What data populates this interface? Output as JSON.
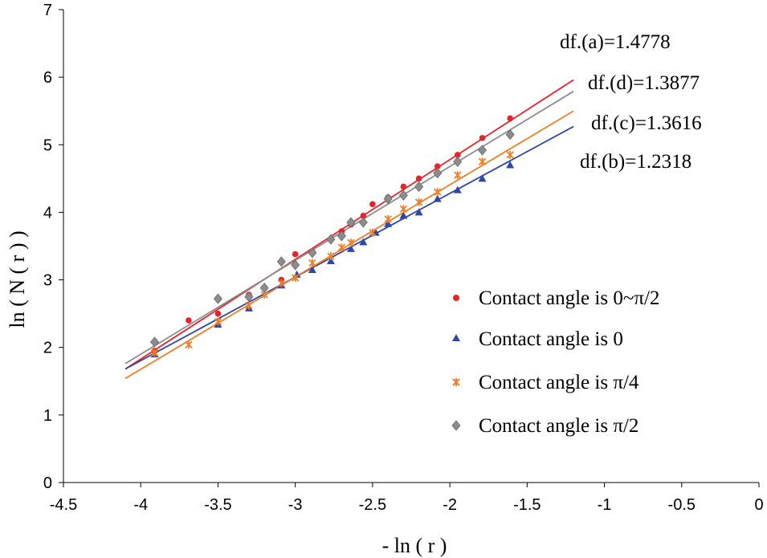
{
  "chart_data": {
    "type": "scatter",
    "title": "",
    "xlabel": "- ln ( r )",
    "ylabel": "ln ( N ( r ) )",
    "xlim": [
      -4.5,
      0
    ],
    "ylim": [
      0,
      7
    ],
    "x_ticks": [
      -4.5,
      -4,
      -3.5,
      -3,
      -2.5,
      -2,
      -1.5,
      -1,
      -0.5,
      0
    ],
    "x_tick_labels": [
      "-4.5",
      "-4",
      "-3.5",
      "-3",
      "-2.5",
      "-2",
      "-1.5",
      "-1",
      "-0.5",
      "0"
    ],
    "y_ticks": [
      0,
      1,
      2,
      3,
      4,
      5,
      6,
      7
    ],
    "y_tick_labels": [
      "0",
      "1",
      "2",
      "3",
      "4",
      "5",
      "6",
      "7"
    ],
    "legend_position": "bottom-right",
    "annotations": [
      {
        "id": "a",
        "text": "df.(a)=1.4778"
      },
      {
        "id": "d",
        "text": "df.(d)=1.3877"
      },
      {
        "id": "c",
        "text": "df.(c)=1.3616"
      },
      {
        "id": "b",
        "text": "df.(b)=1.2318"
      }
    ],
    "series": [
      {
        "name": "Contact angle is 0~π/2",
        "marker": "circle",
        "color": "#e8242a",
        "points": [
          [
            -3.91,
            1.95
          ],
          [
            -3.69,
            2.4
          ],
          [
            -3.5,
            2.5
          ],
          [
            -3.3,
            2.78
          ],
          [
            -3.09,
            3.0
          ],
          [
            -3.0,
            3.38
          ],
          [
            -2.89,
            3.42
          ],
          [
            -2.77,
            3.6
          ],
          [
            -2.7,
            3.72
          ],
          [
            -2.64,
            3.82
          ],
          [
            -2.56,
            3.95
          ],
          [
            -2.5,
            4.12
          ],
          [
            -2.4,
            4.22
          ],
          [
            -2.3,
            4.38
          ],
          [
            -2.2,
            4.5
          ],
          [
            -2.08,
            4.68
          ],
          [
            -1.95,
            4.85
          ],
          [
            -1.79,
            5.1
          ],
          [
            -1.61,
            5.39
          ]
        ],
        "fit": {
          "x": [
            -4.1,
            -1.2
          ],
          "y": [
            1.68,
            5.96
          ]
        }
      },
      {
        "name": "Contact angle is 0",
        "marker": "triangle",
        "color": "#2f48a8",
        "points": [
          [
            -3.91,
            1.9
          ],
          [
            -3.5,
            2.34
          ],
          [
            -3.3,
            2.58
          ],
          [
            -3.09,
            2.92
          ],
          [
            -2.99,
            3.08
          ],
          [
            -2.89,
            3.15
          ],
          [
            -2.77,
            3.28
          ],
          [
            -2.64,
            3.46
          ],
          [
            -2.56,
            3.56
          ],
          [
            -2.48,
            3.7
          ],
          [
            -2.4,
            3.83
          ],
          [
            -2.3,
            3.95
          ],
          [
            -2.2,
            4.0
          ],
          [
            -2.08,
            4.2
          ],
          [
            -1.95,
            4.33
          ],
          [
            -1.79,
            4.5
          ],
          [
            -1.61,
            4.7
          ]
        ],
        "fit": {
          "x": [
            -4.1,
            -1.2
          ],
          "y": [
            1.68,
            5.27
          ]
        }
      },
      {
        "name": "Contact angle is π/4",
        "marker": "x",
        "color": "#f07f2a",
        "points": [
          [
            -3.91,
            1.92
          ],
          [
            -3.69,
            2.04
          ],
          [
            -3.5,
            2.38
          ],
          [
            -3.3,
            2.62
          ],
          [
            -3.2,
            2.78
          ],
          [
            -3.09,
            2.95
          ],
          [
            -3.0,
            3.03
          ],
          [
            -2.89,
            3.25
          ],
          [
            -2.77,
            3.35
          ],
          [
            -2.7,
            3.48
          ],
          [
            -2.64,
            3.55
          ],
          [
            -2.5,
            3.7
          ],
          [
            -2.4,
            3.9
          ],
          [
            -2.3,
            4.05
          ],
          [
            -2.2,
            4.15
          ],
          [
            -2.08,
            4.3
          ],
          [
            -1.95,
            4.55
          ],
          [
            -1.79,
            4.75
          ],
          [
            -1.61,
            4.85
          ]
        ],
        "fit": {
          "x": [
            -4.1,
            -1.2
          ],
          "y": [
            1.54,
            5.5
          ]
        }
      },
      {
        "name": "Contact angle is π/2",
        "marker": "diamond",
        "color": "#8c8c8c",
        "points": [
          [
            -3.91,
            2.08
          ],
          [
            -3.5,
            2.72
          ],
          [
            -3.3,
            2.75
          ],
          [
            -3.2,
            2.88
          ],
          [
            -3.09,
            3.27
          ],
          [
            -3.0,
            3.22
          ],
          [
            -2.89,
            3.4
          ],
          [
            -2.77,
            3.6
          ],
          [
            -2.7,
            3.65
          ],
          [
            -2.64,
            3.85
          ],
          [
            -2.56,
            3.85
          ],
          [
            -2.4,
            4.2
          ],
          [
            -2.3,
            4.25
          ],
          [
            -2.2,
            4.38
          ],
          [
            -2.08,
            4.58
          ],
          [
            -1.95,
            4.75
          ],
          [
            -1.79,
            4.92
          ],
          [
            -1.61,
            5.15
          ]
        ],
        "fit": {
          "x": [
            -4.1,
            -1.2
          ],
          "y": [
            1.76,
            5.79
          ]
        }
      }
    ]
  }
}
